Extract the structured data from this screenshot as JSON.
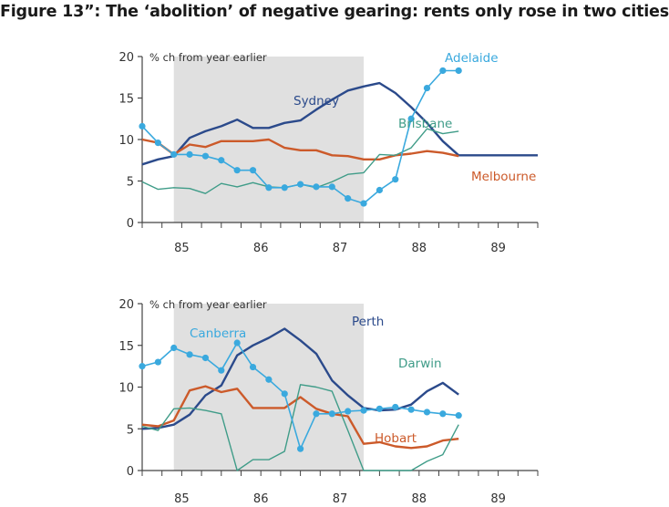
{
  "figure_title": "Figure 13”: The ‘abolition’ of negative gearing: rents only rose in two cities",
  "colors": {
    "navy": "#2b4a8b",
    "orange": "#cc5a2a",
    "teal": "#3f9c88",
    "lightblue": "#3aa9de",
    "shade": "#e0e0e0",
    "axis": "#444444"
  },
  "chart_data": [
    {
      "type": "line",
      "title": "",
      "ylabel": "% ch from year earlier",
      "xlabel": "",
      "ylim": [
        0,
        20
      ],
      "yticks": [
        "0",
        "5",
        "10",
        "15",
        "20"
      ],
      "xlim": [
        1984.5,
        1989.5
      ],
      "xticks": [
        "85",
        "86",
        "87",
        "88",
        "89"
      ],
      "shaded_period": [
        1984.9,
        1987.3
      ],
      "grid": false,
      "legend": "inline labels",
      "series": [
        {
          "name": "Sydney",
          "color": "navy",
          "markers": false,
          "x": [
            1984.5,
            1984.7,
            1984.9,
            1985.1,
            1985.3,
            1985.5,
            1985.7,
            1985.9,
            1986.1,
            1986.3,
            1986.5,
            1986.7,
            1986.9,
            1987.1,
            1987.3,
            1987.5,
            1987.7,
            1987.9,
            1988.1,
            1988.3,
            1988.5,
            1988.7,
            1988.9,
            1989.1,
            1989.3,
            1989.5
          ],
          "y": [
            7.0,
            7.6,
            8.0,
            10.2,
            11.0,
            11.6,
            12.4,
            11.4,
            11.4,
            12.0,
            12.3,
            13.6,
            14.8,
            15.9,
            16.4,
            16.8,
            15.6,
            13.9,
            12.0,
            9.8,
            8.1,
            8.1,
            8.1,
            8.1,
            8.1,
            8.1
          ]
        },
        {
          "name": "Melbourne",
          "color": "orange",
          "markers": false,
          "x": [
            1984.5,
            1984.7,
            1984.9,
            1985.1,
            1985.3,
            1985.5,
            1985.7,
            1985.9,
            1986.1,
            1986.3,
            1986.5,
            1986.7,
            1986.9,
            1987.1,
            1987.3,
            1987.5,
            1987.7,
            1987.9,
            1988.1,
            1988.3,
            1988.5
          ],
          "y": [
            10.0,
            9.6,
            8.2,
            9.4,
            9.1,
            9.8,
            9.8,
            9.8,
            10.0,
            9.0,
            8.7,
            8.7,
            8.1,
            8.0,
            7.6,
            7.6,
            8.1,
            8.3,
            8.6,
            8.4,
            8.0
          ]
        },
        {
          "name": "Brisbane",
          "color": "teal",
          "markers": false,
          "x": [
            1984.5,
            1984.7,
            1984.9,
            1985.1,
            1985.3,
            1985.5,
            1985.7,
            1985.9,
            1986.1,
            1986.3,
            1986.5,
            1986.7,
            1986.9,
            1987.1,
            1987.3,
            1987.5,
            1987.7,
            1987.9,
            1988.1,
            1988.3,
            1988.5
          ],
          "y": [
            4.9,
            4.0,
            4.2,
            4.1,
            3.5,
            4.7,
            4.3,
            4.8,
            4.3,
            4.2,
            4.6,
            4.2,
            4.9,
            5.8,
            6.0,
            8.2,
            8.1,
            9.0,
            11.3,
            10.7,
            11.0
          ]
        },
        {
          "name": "Adelaide",
          "color": "lightblue",
          "markers": true,
          "x": [
            1984.5,
            1984.7,
            1984.9,
            1985.1,
            1985.3,
            1985.5,
            1985.7,
            1985.9,
            1986.1,
            1986.3,
            1986.5,
            1986.7,
            1986.9,
            1987.1,
            1987.3,
            1987.5,
            1987.7,
            1987.9,
            1988.1,
            1988.3,
            1988.5
          ],
          "y": [
            11.6,
            9.6,
            8.2,
            8.2,
            8.0,
            7.5,
            6.3,
            6.3,
            4.2,
            4.2,
            4.6,
            4.3,
            4.3,
            2.9,
            2.3,
            3.9,
            5.2,
            12.5,
            16.2,
            18.3,
            18.3
          ]
        }
      ],
      "series_labels": [
        "Sydney",
        "Brisbane",
        "Adelaide",
        "Melbourne"
      ]
    },
    {
      "type": "line",
      "title": "",
      "ylabel": "% ch from year earlier",
      "xlabel": "",
      "ylim": [
        0,
        20
      ],
      "yticks": [
        "0",
        "5",
        "10",
        "15",
        "20"
      ],
      "xlim": [
        1984.5,
        1989.5
      ],
      "xticks": [
        "85",
        "86",
        "87",
        "88",
        "89"
      ],
      "shaded_period": [
        1984.9,
        1987.3
      ],
      "grid": false,
      "legend": "inline labels",
      "series": [
        {
          "name": "Perth",
          "color": "navy",
          "markers": false,
          "x": [
            1984.5,
            1984.7,
            1984.9,
            1985.1,
            1985.3,
            1985.5,
            1985.7,
            1985.9,
            1986.1,
            1986.3,
            1986.5,
            1986.7,
            1986.9,
            1987.1,
            1987.3,
            1987.5,
            1987.7,
            1987.9,
            1988.1,
            1988.3,
            1988.5
          ],
          "y": [
            5.0,
            5.1,
            5.5,
            6.7,
            9.0,
            10.2,
            13.8,
            15.0,
            15.9,
            17.0,
            15.6,
            14.0,
            10.8,
            9.0,
            7.5,
            7.2,
            7.3,
            7.9,
            9.5,
            10.5,
            9.1
          ]
        },
        {
          "name": "Hobart",
          "color": "orange",
          "markers": false,
          "x": [
            1984.5,
            1984.7,
            1984.9,
            1985.1,
            1985.3,
            1985.5,
            1985.7,
            1985.9,
            1986.1,
            1986.3,
            1986.5,
            1986.7,
            1986.9,
            1987.1,
            1987.3,
            1987.5,
            1987.7,
            1987.9,
            1988.1,
            1988.3,
            1988.5
          ],
          "y": [
            5.5,
            5.3,
            6.0,
            9.6,
            10.1,
            9.4,
            9.8,
            7.5,
            7.5,
            7.5,
            8.8,
            7.4,
            6.8,
            6.5,
            3.2,
            3.4,
            2.9,
            2.7,
            2.9,
            3.6,
            3.8
          ]
        },
        {
          "name": "Darwin",
          "color": "teal",
          "markers": false,
          "x": [
            1984.5,
            1984.7,
            1984.9,
            1985.1,
            1985.3,
            1985.5,
            1985.7,
            1985.9,
            1986.1,
            1986.3,
            1986.5,
            1986.7,
            1986.9,
            1987.1,
            1987.3,
            1987.5,
            1987.7,
            1987.9,
            1988.1,
            1988.3,
            1988.5
          ],
          "y": [
            5.3,
            4.8,
            7.4,
            7.5,
            7.2,
            6.8,
            0.0,
            1.3,
            1.3,
            2.3,
            10.3,
            10.0,
            9.5,
            4.8,
            0.0,
            0.0,
            0.0,
            0.0,
            1.1,
            1.9,
            5.5
          ]
        },
        {
          "name": "Canberra",
          "color": "lightblue",
          "markers": true,
          "x": [
            1984.5,
            1984.7,
            1984.9,
            1985.1,
            1985.3,
            1985.5,
            1985.7,
            1985.9,
            1986.1,
            1986.3,
            1986.5,
            1986.7,
            1986.9,
            1987.1,
            1987.3,
            1987.5,
            1987.7,
            1987.9,
            1988.1,
            1988.3,
            1988.5
          ],
          "y": [
            12.5,
            13.0,
            14.7,
            13.9,
            13.5,
            12.0,
            15.3,
            12.4,
            10.9,
            9.2,
            2.6,
            6.8,
            6.8,
            7.1,
            7.2,
            7.4,
            7.6,
            7.3,
            7.0,
            6.8,
            6.6
          ]
        }
      ],
      "series_labels": [
        "Canberra",
        "Perth",
        "Darwin",
        "Hobart"
      ]
    }
  ]
}
